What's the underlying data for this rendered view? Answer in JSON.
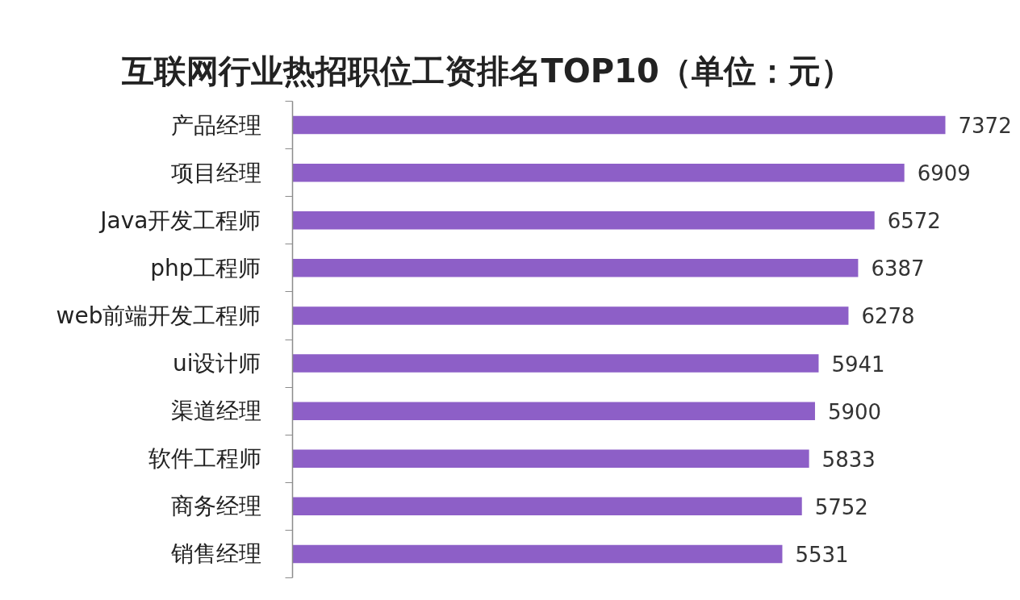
{
  "chart_data": {
    "type": "bar",
    "orientation": "horizontal",
    "title": "互联网行业热招职位工资排名TOP10（单位：元）",
    "categories": [
      "产品经理",
      "项目经理",
      "Java开发工程师",
      "php工程师",
      "web前端开发工程师",
      "ui设计师",
      "渠道经理",
      "软件工程师",
      "商务经理",
      "销售经理"
    ],
    "values": [
      7372,
      6909,
      6572,
      6387,
      6278,
      5941,
      5900,
      5833,
      5752,
      5531
    ],
    "color": "#8d5fc7",
    "data_labels": true
  }
}
